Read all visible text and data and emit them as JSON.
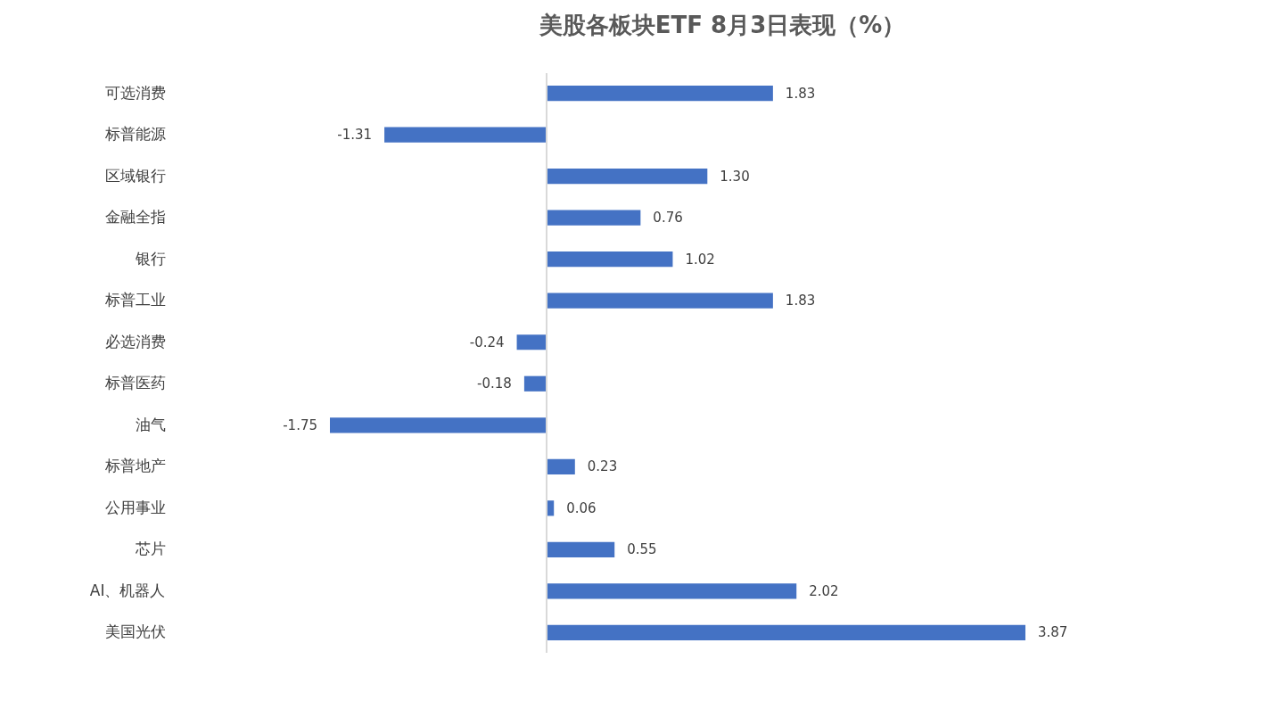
{
  "chart_data": {
    "type": "bar",
    "orientation": "horizontal",
    "title": "美股各板块ETF  8月3日表现（%）",
    "color": "#4472c4",
    "tick_labels": "y",
    "categories": [
      "可选消费",
      "标普能源",
      "区域银行",
      "金融全指",
      "银行",
      "标普工业",
      "必选消费",
      "标普医药",
      "油气",
      "标普地产",
      "公用事业",
      "芯片",
      "AI、机器人",
      "美国光伏"
    ],
    "values": [
      1.83,
      -1.31,
      1.3,
      0.76,
      1.02,
      1.83,
      -0.24,
      -0.18,
      -1.75,
      0.23,
      0.06,
      0.55,
      2.02,
      3.87
    ],
    "value_labels": [
      "1.83",
      "-1.31",
      "1.30",
      "0.76",
      "1.02",
      "1.83",
      "-0.24",
      "-0.18",
      "-1.75",
      "0.23",
      "0.06",
      "0.55",
      "2.02",
      "3.87"
    ]
  }
}
